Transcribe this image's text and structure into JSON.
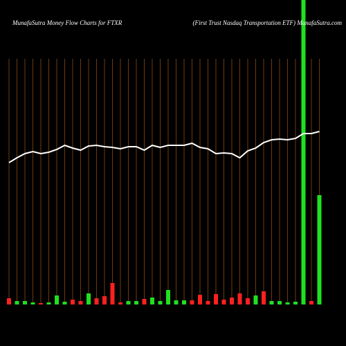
{
  "chart_data": {
    "type": "money-flow",
    "title": "MunafaSutra  Money Flow  Charts for FTXR",
    "subtitle": "(First Trust Nasdaq Transportation  ETF) MunafaSutra.com",
    "categories": [
      null,
      null,
      null,
      null,
      null,
      null,
      null,
      null,
      null,
      null,
      null,
      null,
      null,
      null,
      null,
      null,
      null,
      null,
      null,
      null,
      null,
      null,
      null,
      null,
      null,
      null,
      null,
      null,
      null,
      null,
      null,
      null,
      null,
      null,
      null,
      null,
      null,
      null,
      null,
      null
    ],
    "ylim": [
      0,
      440
    ],
    "grid": true,
    "grid_color": "#8b4a14",
    "series": [
      {
        "name": "price",
        "kind": "line",
        "color": "#ffffff",
        "values": [
          205,
          212,
          218,
          221,
          218,
          220,
          224,
          230,
          226,
          223,
          229,
          230,
          228,
          227,
          225,
          228,
          228,
          223,
          230,
          227,
          230,
          230,
          230,
          233,
          227,
          225,
          218,
          219,
          218,
          212,
          222,
          226,
          234,
          238,
          239,
          238,
          240,
          247,
          247,
          250
        ]
      },
      {
        "name": "volume",
        "kind": "bar",
        "colors": [
          "#ff2020",
          "#20e020",
          "#20e020",
          "#20e020",
          "#ff2020",
          "#20e020",
          "#20e020",
          "#20e020",
          "#ff2020",
          "#ff2020",
          "#20e020",
          "#ff2020",
          "#ff2020",
          "#ff2020",
          "#ff2020",
          "#20e020",
          "#20e020",
          "#ff2020",
          "#20e020",
          "#20e020",
          "#20e020",
          "#20e020",
          "#20e020",
          "#ff2020",
          "#ff2020",
          "#ff2020",
          "#ff2020",
          "#ff2020",
          "#ff2020",
          "#ff2020",
          "#ff2020",
          "#20e020",
          "#ff2020",
          "#20e020",
          "#20e020",
          "#20e020",
          "#20e020",
          "#20e020",
          "#ff2020",
          "#20e020"
        ],
        "values": [
          9,
          5,
          5,
          3,
          2,
          3,
          13,
          4,
          7,
          5,
          16,
          9,
          12,
          31,
          3,
          5,
          5,
          8,
          10,
          5,
          21,
          6,
          6,
          6,
          14,
          5,
          15,
          7,
          10,
          16,
          9,
          13,
          19,
          5,
          5,
          3,
          4,
          440,
          5,
          158
        ]
      }
    ]
  }
}
